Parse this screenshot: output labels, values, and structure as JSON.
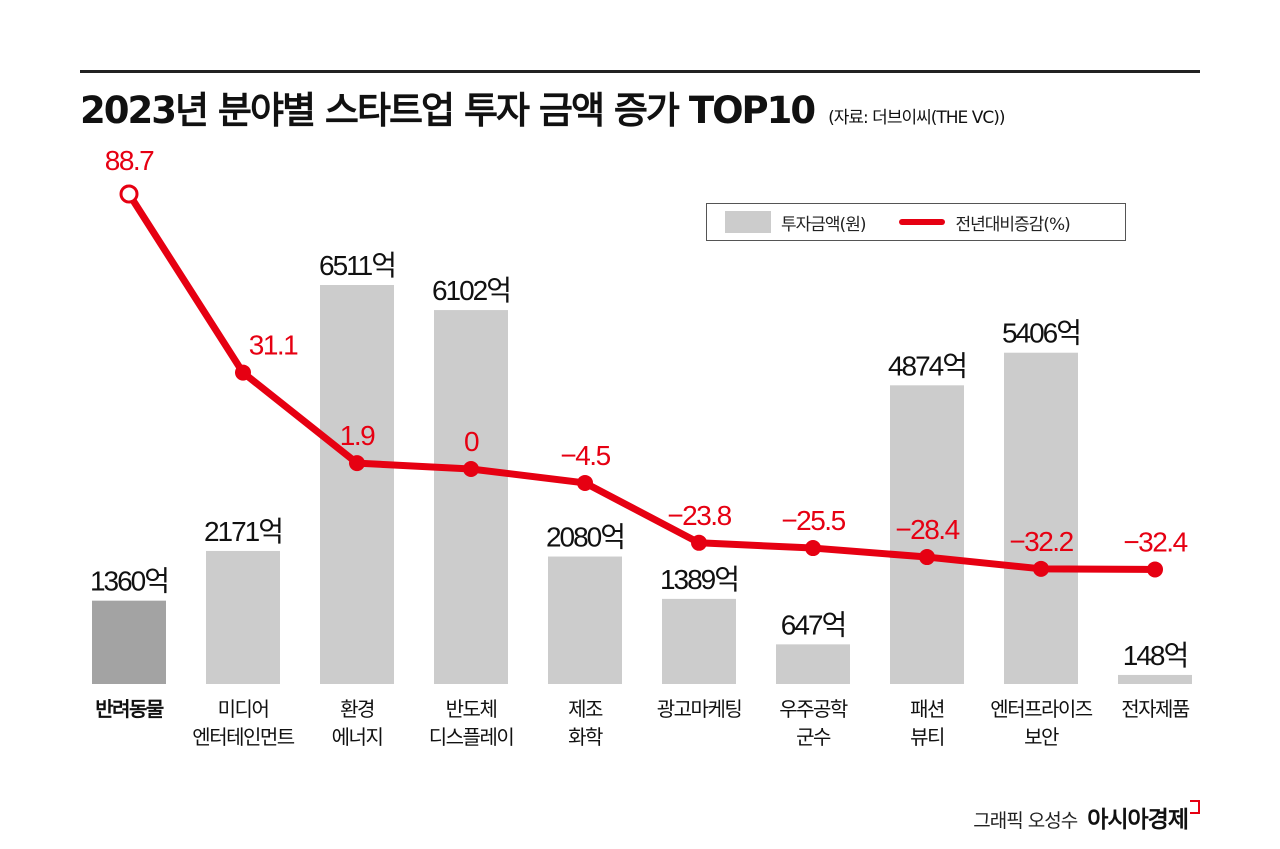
{
  "title": "2023년 분야별 스타트업 투자 금액 증가 TOP10",
  "source": "(자료: 더브이씨(THE VC))",
  "credit": "그래픽 오성수",
  "brand": "아시아경제",
  "colors": {
    "bar": "#cccccc",
    "bar_highlight": "#a3a3a3",
    "line": "#e60012"
  },
  "chart_data": {
    "type": "bar+line",
    "legend": [
      "투자금액(원)",
      "전년대비증감(%)"
    ],
    "legend_placement": "top-right",
    "categories": [
      [
        "반려동물"
      ],
      [
        "미디어",
        "엔터테인먼트"
      ],
      [
        "환경",
        "에너지"
      ],
      [
        "반도체",
        "디스플레이"
      ],
      [
        "제조",
        "화학"
      ],
      [
        "광고마케팅"
      ],
      [
        "우주공학",
        "군수"
      ],
      [
        "패션",
        "뷰티"
      ],
      [
        "엔터프라이즈",
        "보안"
      ],
      [
        "전자제품"
      ]
    ],
    "series": [
      {
        "name": "투자금액(원)",
        "type": "bar",
        "unit": "억",
        "values": [
          1360,
          2171,
          6511,
          6102,
          2080,
          1389,
          647,
          4874,
          5406,
          148
        ],
        "labels": [
          "1360억",
          "2171억",
          "6511억",
          "6102억",
          "2080억",
          "1389억",
          "647억",
          "4874억",
          "5406억",
          "148억"
        ]
      },
      {
        "name": "전년대비증감(%)",
        "type": "line",
        "values": [
          88.7,
          31.1,
          1.9,
          0,
          -4.5,
          -23.8,
          -25.5,
          -28.4,
          -32.2,
          -32.4
        ],
        "labels": [
          "88.7",
          "31.1",
          "1.9",
          "0",
          "−4.5",
          "−23.8",
          "−25.5",
          "−28.4",
          "−32.2",
          "−32.4"
        ]
      }
    ],
    "grid": false
  }
}
